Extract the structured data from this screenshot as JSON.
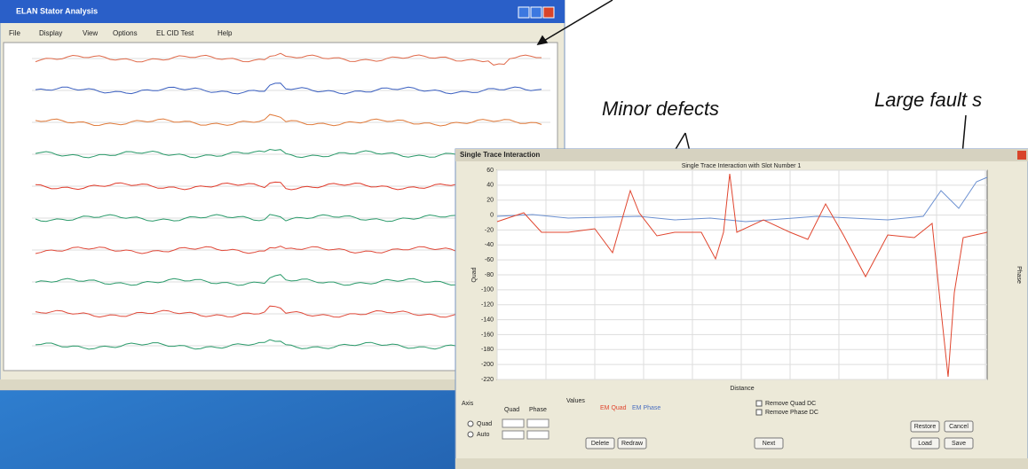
{
  "main_window": {
    "title": "ELAN Stator Analysis",
    "menu": [
      "File",
      "Display",
      "View",
      "Options",
      "EL CID Test",
      "Help"
    ]
  },
  "trace_window": {
    "title": "Single Trace Interaction",
    "chart_title": "Single Trace Interaction with Slot Number 1",
    "y_label": "Quad",
    "y2_label": "Phase",
    "x_label": "Distance",
    "yticks": [
      60,
      40,
      20,
      0,
      -20,
      -40,
      -60,
      -80,
      -100,
      -120,
      -140,
      -160,
      -180,
      -200,
      -220
    ],
    "controls": {
      "axis": "Axis",
      "quad_header": "Quad",
      "phase_header": "Phase",
      "radio_quad": "Quad",
      "radio_auto": "Auto",
      "values": "Values",
      "legend_quad": "EM Quad",
      "legend_phase": "EM Phase",
      "remove_quad": "Remove Quad DC",
      "remove_phase": "Remove Phase DC",
      "delete": "Delete",
      "redraw": "Redraw",
      "next": "Next",
      "restore": "Restore",
      "cancel": "Cancel",
      "load": "Load",
      "save": "Save"
    }
  },
  "annotations": {
    "minor": "Minor defects",
    "large": "Large fault s"
  }
}
